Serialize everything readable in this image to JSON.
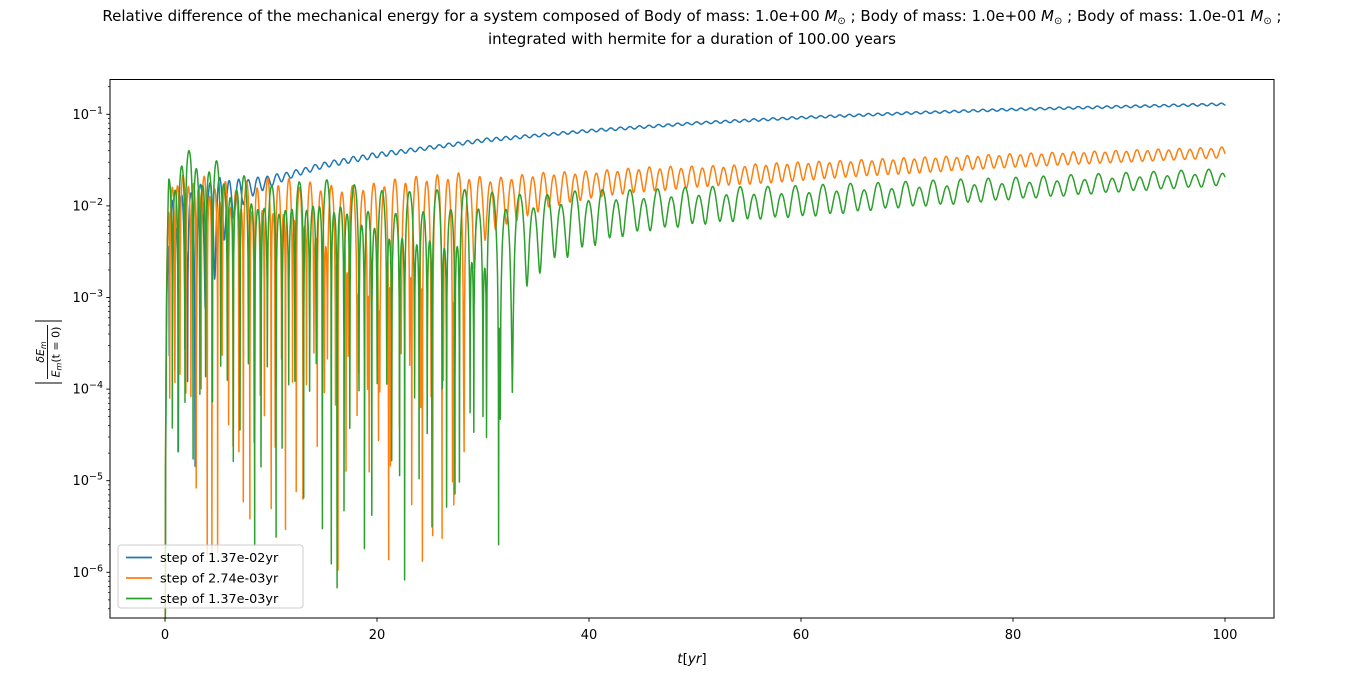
{
  "title": {
    "line1_plain": "Relative difference of the mechanical energy for a system composed of Body of mass: 1.0e+00 M⊙ ; Body of mass: 1.0e+00 M⊙ ; Body of mass: 1.0e-01 M⊙ ;",
    "line1_segments": [
      {
        "text": "Relative difference of the mechanical energy for a system composed of Body of mass: 1.0e+00 "
      },
      {
        "text": "M",
        "italic": true
      },
      {
        "text": "⊙",
        "sub": true
      },
      {
        "text": " ; Body of mass: 1.0e+00 "
      },
      {
        "text": "M",
        "italic": true
      },
      {
        "text": "⊙",
        "sub": true
      },
      {
        "text": " ; Body of mass: 1.0e-01 "
      },
      {
        "text": "M",
        "italic": true
      },
      {
        "text": "⊙",
        "sub": true
      },
      {
        "text": " ;"
      }
    ],
    "line2": "integrated with hermite for a duration of 100.00 years"
  },
  "chart_data": {
    "type": "line",
    "x_scale": "linear",
    "y_scale": "log",
    "grid": false,
    "xlabel": "t[yr]",
    "xlabel_parts": {
      "t": "t",
      "lb": "[",
      "yr": "yr",
      "rb": "]"
    },
    "ylabel": "|δE_m / E_m(t = 0)|",
    "ylabel_parts": {
      "num": "δE",
      "num_sub": "m",
      "den": "E",
      "den_sub": "m",
      "den_rest": "(t = 0)"
    },
    "xlim": [
      -5.2,
      104.6
    ],
    "ylim": [
      3.2e-07,
      0.24
    ],
    "x_ticks": [
      0,
      20,
      40,
      60,
      80,
      100
    ],
    "y_tick_exponents": [
      -1,
      -2,
      -3,
      -4,
      -5,
      -6
    ],
    "legend": {
      "location": "lower left",
      "entries": [
        {
          "label": "step of 1.37e-02yr",
          "color": "#1f77b4"
        },
        {
          "label": "step of 2.74e-03yr",
          "color": "#ff7f0e"
        },
        {
          "label": "step of 1.37e-03yr",
          "color": "#2ca02c"
        }
      ]
    },
    "features": {
      "blue": "few deep notches for t<5 (down to ~1e-4), then smooth rise with tiny ripples up to ~1.3e-1 at t=100",
      "orange": "notch forest (dips 1e-4..2e-6) until t≈28, then oscillation rising from ~1.5e-2 to ~4e-2",
      "green": "notch forest (dips 1e-4..6e-7, deepest ~6e-7 near t≈19.5, last deep spike t≈36) then oscillation rising from ~8e-3 to ~2e-2"
    },
    "series": [
      {
        "name": "step of 1.37e-02yr",
        "color": "#1f77b4",
        "period_yr": 0.9,
        "phase": 3.3,
        "harmonic2": 0.06,
        "seed": 11,
        "notch_depth_log10_range": [
          3.2,
          4.8
        ],
        "drift_anchors": [
          [
            0,
            0.002
          ],
          [
            3,
            0.008
          ],
          [
            5,
            0.011
          ],
          [
            8,
            0.016
          ],
          [
            10,
            0.019
          ],
          [
            15,
            0.028
          ],
          [
            20,
            0.036
          ],
          [
            30,
            0.052
          ],
          [
            40,
            0.066
          ],
          [
            50,
            0.08
          ],
          [
            60,
            0.092
          ],
          [
            70,
            0.103
          ],
          [
            80,
            0.113
          ],
          [
            90,
            0.121
          ],
          [
            100,
            0.129
          ]
        ],
        "osc_amp_anchors": [
          [
            0,
            0.013
          ],
          [
            3,
            0.0095
          ],
          [
            5,
            0.009
          ],
          [
            8,
            0.0035
          ],
          [
            12,
            0.0022
          ],
          [
            40,
            0.0025
          ],
          [
            100,
            0.004
          ]
        ],
        "trend_t": [
          0,
          10,
          20,
          30,
          40,
          50,
          60,
          70,
          80,
          90,
          100
        ],
        "trend_values": [
          0.002,
          0.019,
          0.036,
          0.052,
          0.066,
          0.08,
          0.092,
          0.103,
          0.113,
          0.121,
          0.129
        ]
      },
      {
        "name": "step of 2.74e-03yr",
        "color": "#ff7f0e",
        "period_yr": 1.0,
        "phase": 3.5,
        "harmonic2": 0.12,
        "seed": 22,
        "notch_depth_log10_range": [
          3.6,
          6.0
        ],
        "drift_anchors": [
          [
            0,
            0.001
          ],
          [
            5,
            0.003
          ],
          [
            10,
            0.005
          ],
          [
            15,
            0.006
          ],
          [
            20,
            0.008
          ],
          [
            28,
            0.0105
          ],
          [
            36,
            0.016
          ],
          [
            45,
            0.02
          ],
          [
            55,
            0.0225
          ],
          [
            65,
            0.026
          ],
          [
            80,
            0.0315
          ],
          [
            100,
            0.0385
          ]
        ],
        "osc_amp_anchors": [
          [
            0,
            0.016
          ],
          [
            3,
            0.022
          ],
          [
            8,
            0.015
          ],
          [
            15,
            0.0115
          ],
          [
            20,
            0.01
          ],
          [
            25,
            0.0115
          ],
          [
            28,
            0.0135
          ],
          [
            31,
            0.008
          ],
          [
            36,
            0.007
          ],
          [
            50,
            0.006
          ],
          [
            100,
            0.0055
          ]
        ],
        "trend_t": [
          0,
          10,
          20,
          30,
          40,
          50,
          60,
          70,
          80,
          90,
          100
        ],
        "trend_values": [
          0.001,
          0.005,
          0.008,
          0.0117,
          0.0176,
          0.0212,
          0.0242,
          0.0275,
          0.0315,
          0.035,
          0.0385
        ]
      },
      {
        "name": "step of 1.37e-03yr",
        "color": "#2ca02c",
        "period_yr": 1.3,
        "phase": 3.2,
        "harmonic2": 0.28,
        "seed": 33,
        "notch_depth_log10_range": [
          3.7,
          6.3
        ],
        "drift_anchors": [
          [
            0,
            0.0005
          ],
          [
            5,
            0.0015
          ],
          [
            10,
            0.0022
          ],
          [
            15,
            0.0028
          ],
          [
            20,
            0.0033
          ],
          [
            25,
            0.004
          ],
          [
            30,
            0.005
          ],
          [
            36,
            0.007
          ],
          [
            40,
            0.0085
          ],
          [
            50,
            0.0105
          ],
          [
            60,
            0.0115
          ],
          [
            70,
            0.0135
          ],
          [
            80,
            0.0155
          ],
          [
            90,
            0.018
          ],
          [
            100,
            0.0205
          ]
        ],
        "osc_amp_anchors": [
          [
            0,
            0.028
          ],
          [
            2,
            0.036
          ],
          [
            5,
            0.026
          ],
          [
            10,
            0.0165
          ],
          [
            15,
            0.015
          ],
          [
            20,
            0.0125
          ],
          [
            25,
            0.0105
          ],
          [
            30,
            0.0095
          ],
          [
            34,
            0.0075
          ],
          [
            36,
            0.0063
          ],
          [
            40,
            0.0063
          ],
          [
            50,
            0.0055
          ],
          [
            60,
            0.0052
          ],
          [
            80,
            0.005
          ],
          [
            100,
            0.005
          ]
        ],
        "trend_t": [
          0,
          10,
          20,
          30,
          40,
          50,
          60,
          70,
          80,
          90,
          100
        ],
        "trend_values": [
          0.0005,
          0.0022,
          0.0033,
          0.005,
          0.0085,
          0.0105,
          0.0115,
          0.0135,
          0.0155,
          0.018,
          0.0205
        ]
      }
    ]
  },
  "colors": {
    "spine": "#000000",
    "text": "#000000",
    "legend_border": "#cccccc",
    "background": "#ffffff"
  }
}
